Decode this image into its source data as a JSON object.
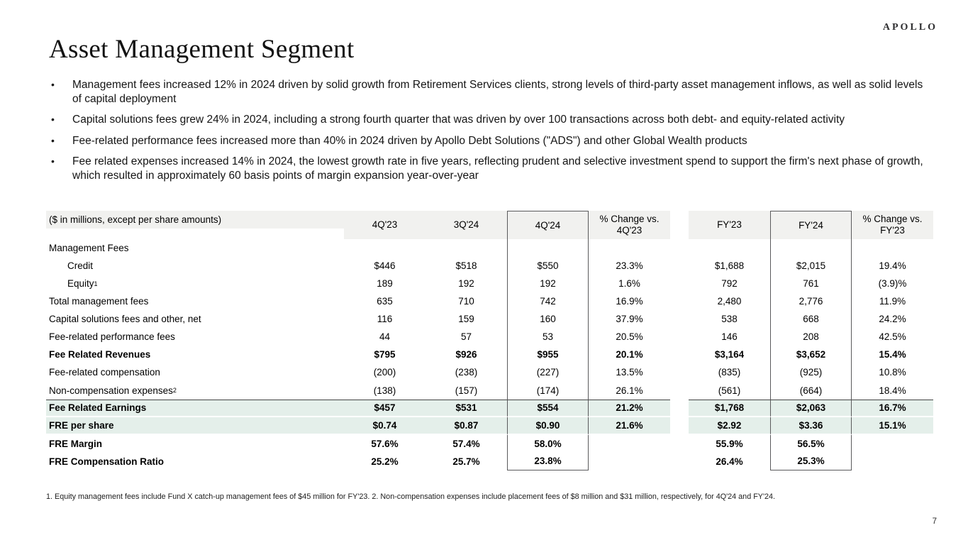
{
  "page": {
    "logo": "APOLLO",
    "title": "Asset Management Segment",
    "page_number": "7",
    "footnote": "1. Equity management fees include Fund X catch-up management fees of $45 million for FY'23. 2. Non-compensation expenses include placement fees of $8 million and $31 million, respectively, for 4Q'24 and FY'24."
  },
  "bullets": [
    "Management fees increased 12% in 2024 driven by solid growth from Retirement Services clients, strong levels of third-party asset management inflows, as well as solid levels of capital deployment",
    "Capital solutions fees grew 24% in 2024, including a strong fourth quarter that was driven by over 100 transactions across both debt- and equity-related activity",
    "Fee-related performance fees increased more than 40% in 2024 driven by Apollo Debt Solutions (\"ADS\") and other Global Wealth products",
    "Fee related expenses increased 14% in 2024, the lowest growth rate in five years, reflecting prudent and selective investment spend to support the firm's next phase of growth, which resulted in approximately 60 basis points of margin expansion year-over-year"
  ],
  "colors": {
    "header_bg": "#f1f1ef",
    "highlight_bg": "#e4efea",
    "box_border": "#5a5a5c",
    "topline_color": "#454545"
  },
  "table": {
    "columns": [
      "($ in millions, except per share amounts)",
      "4Q'23",
      "3Q'24",
      "4Q'24",
      "% Change vs. 4Q'23",
      "FY'23",
      "FY'24",
      "% Change vs. FY'23"
    ],
    "rows": [
      {
        "label": "Management Fees",
        "values": [
          "",
          "",
          "",
          "",
          "",
          "",
          ""
        ]
      },
      {
        "label": "Credit",
        "indent": true,
        "values": [
          "$446",
          "$518",
          "$550",
          "23.3%",
          "$1,688",
          "$2,015",
          "19.4%"
        ]
      },
      {
        "label": "Equity",
        "sup": "1",
        "indent": true,
        "values": [
          "189",
          "192",
          "192",
          "1.6%",
          "792",
          "761",
          "(3.9)%"
        ]
      },
      {
        "label": "Total management fees",
        "values": [
          "635",
          "710",
          "742",
          "16.9%",
          "2,480",
          "2,776",
          "11.9%"
        ]
      },
      {
        "label": "Capital solutions fees and other, net",
        "values": [
          "116",
          "159",
          "160",
          "37.9%",
          "538",
          "668",
          "24.2%"
        ]
      },
      {
        "label": "Fee-related performance fees",
        "values": [
          "44",
          "57",
          "53",
          "20.5%",
          "146",
          "208",
          "42.5%"
        ]
      },
      {
        "label": "Fee Related Revenues",
        "bold": true,
        "values": [
          "$795",
          "$926",
          "$955",
          "20.1%",
          "$3,164",
          "$3,652",
          "15.4%"
        ]
      },
      {
        "label": "Fee-related compensation",
        "values": [
          "(200)",
          "(238)",
          "(227)",
          "13.5%",
          "(835)",
          "(925)",
          "10.8%"
        ]
      },
      {
        "label": "Non-compensation expenses",
        "sup": "2",
        "values": [
          "(138)",
          "(157)",
          "(174)",
          "26.1%",
          "(561)",
          "(664)",
          "18.4%"
        ]
      },
      {
        "label": "Fee Related Earnings",
        "bold": true,
        "green": true,
        "topline": true,
        "values": [
          "$457",
          "$531",
          "$554",
          "21.2%",
          "$1,768",
          "$2,063",
          "16.7%"
        ]
      },
      {
        "label": "FRE per share",
        "bold": true,
        "green": true,
        "values": [
          "$0.74",
          "$0.87",
          "$0.90",
          "21.6%",
          "$2.92",
          "$3.36",
          "15.1%"
        ]
      },
      {
        "label": "FRE Margin",
        "bold": true,
        "values": [
          "57.6%",
          "57.4%",
          "58.0%",
          "",
          "55.9%",
          "56.5%",
          ""
        ]
      },
      {
        "label": "FRE Compensation Ratio",
        "bold": true,
        "values": [
          "25.2%",
          "25.7%",
          "23.8%",
          "",
          "26.4%",
          "25.3%",
          ""
        ]
      }
    ]
  }
}
